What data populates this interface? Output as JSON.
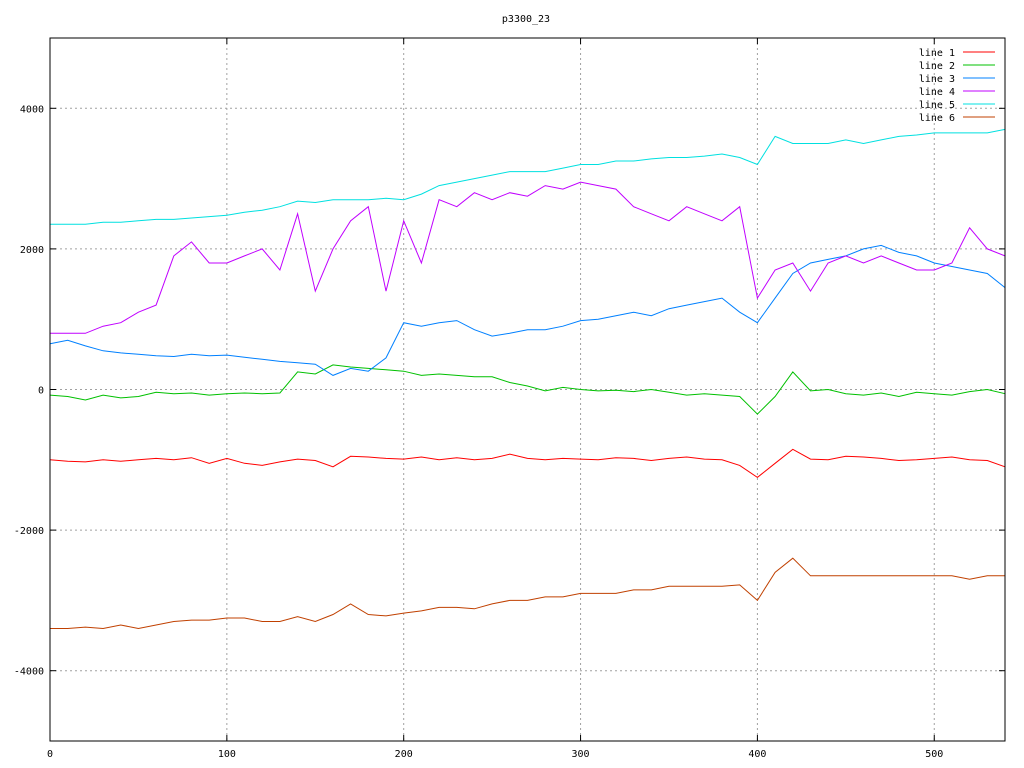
{
  "chart_data": {
    "type": "line",
    "title": "p3300_23",
    "xlabel": "",
    "ylabel": "",
    "xlim": [
      0,
      540
    ],
    "ylim": [
      -5000,
      5000
    ],
    "grid": true,
    "legend_position": "top-right",
    "x_ticks": [
      0,
      100,
      200,
      300,
      400,
      500
    ],
    "y_ticks": [
      -4000,
      -2000,
      0,
      2000,
      4000
    ],
    "x_tick_labels": [
      "0",
      "100",
      "200",
      "300",
      "400",
      "500"
    ],
    "y_tick_labels": [
      "-4000",
      "-2000",
      "0",
      "2000",
      "4000"
    ],
    "x": [
      0,
      10,
      20,
      30,
      40,
      50,
      60,
      70,
      80,
      90,
      100,
      110,
      120,
      130,
      140,
      150,
      160,
      170,
      180,
      190,
      200,
      210,
      220,
      230,
      240,
      250,
      260,
      270,
      280,
      290,
      300,
      310,
      320,
      330,
      340,
      350,
      360,
      370,
      380,
      390,
      400,
      410,
      420,
      430,
      440,
      450,
      460,
      470,
      480,
      490,
      500,
      510,
      520,
      530,
      540
    ],
    "series": [
      {
        "name": "line 1",
        "color": "#ff0000",
        "values": [
          -1000,
          -1020,
          -1030,
          -1000,
          -1020,
          -1000,
          -980,
          -1000,
          -970,
          -1050,
          -980,
          -1050,
          -1080,
          -1030,
          -990,
          -1010,
          -1100,
          -950,
          -960,
          -980,
          -990,
          -960,
          -1000,
          -970,
          -1000,
          -980,
          -920,
          -980,
          -1000,
          -980,
          -990,
          -1000,
          -970,
          -980,
          -1010,
          -980,
          -960,
          -990,
          -1000,
          -1080,
          -1250,
          -1050,
          -850,
          -990,
          -1000,
          -950,
          -960,
          -980,
          -1010,
          -1000,
          -980,
          -960,
          -1000,
          -1010,
          -1100
        ]
      },
      {
        "name": "line 2",
        "color": "#00c000",
        "values": [
          -80,
          -100,
          -150,
          -80,
          -120,
          -100,
          -40,
          -60,
          -50,
          -80,
          -60,
          -50,
          -60,
          -50,
          250,
          220,
          350,
          320,
          300,
          280,
          260,
          200,
          220,
          200,
          180,
          180,
          100,
          50,
          -20,
          30,
          0,
          -20,
          -10,
          -30,
          0,
          -40,
          -80,
          -60,
          -80,
          -100,
          -350,
          -100,
          250,
          -20,
          0,
          -60,
          -80,
          -50,
          -100,
          -40,
          -60,
          -80,
          -30,
          0,
          -60
        ]
      },
      {
        "name": "line 3",
        "color": "#0080ff",
        "values": [
          650,
          700,
          620,
          550,
          520,
          500,
          480,
          470,
          500,
          480,
          490,
          460,
          430,
          400,
          380,
          360,
          200,
          300,
          260,
          450,
          950,
          900,
          950,
          980,
          850,
          760,
          800,
          850,
          850,
          900,
          980,
          1000,
          1050,
          1100,
          1050,
          1150,
          1200,
          1250,
          1300,
          1100,
          950,
          1300,
          1650,
          1800,
          1850,
          1900,
          2000,
          2050,
          1950,
          1900,
          1800,
          1750,
          1700,
          1650,
          1450
        ]
      },
      {
        "name": "line 4",
        "color": "#c000ff",
        "values": [
          800,
          800,
          800,
          900,
          950,
          1100,
          1200,
          1900,
          2100,
          1800,
          1800,
          1900,
          2000,
          1700,
          2500,
          1400,
          2000,
          2400,
          2600,
          1400,
          2400,
          1800,
          2700,
          2600,
          2800,
          2700,
          2800,
          2750,
          2900,
          2850,
          2950,
          2900,
          2850,
          2600,
          2500,
          2400,
          2600,
          2500,
          2400,
          2600,
          1300,
          1700,
          1800,
          1400,
          1800,
          1900,
          1800,
          1900,
          1800,
          1700,
          1700,
          1800,
          2300,
          2000,
          1900
        ]
      },
      {
        "name": "line 5",
        "color": "#00e0e0",
        "values": [
          2350,
          2350,
          2350,
          2380,
          2380,
          2400,
          2420,
          2420,
          2440,
          2460,
          2480,
          2520,
          2550,
          2600,
          2680,
          2660,
          2700,
          2700,
          2700,
          2720,
          2700,
          2780,
          2900,
          2950,
          3000,
          3050,
          3100,
          3100,
          3100,
          3150,
          3200,
          3200,
          3250,
          3250,
          3280,
          3300,
          3300,
          3320,
          3350,
          3300,
          3200,
          3600,
          3500,
          3500,
          3500,
          3550,
          3500,
          3550,
          3600,
          3620,
          3650,
          3650,
          3650,
          3650,
          3700
        ]
      },
      {
        "name": "line 6",
        "color": "#c04000",
        "values": [
          -3400,
          -3400,
          -3380,
          -3400,
          -3350,
          -3400,
          -3350,
          -3300,
          -3280,
          -3280,
          -3250,
          -3250,
          -3300,
          -3300,
          -3230,
          -3300,
          -3200,
          -3050,
          -3200,
          -3220,
          -3180,
          -3150,
          -3100,
          -3100,
          -3120,
          -3050,
          -3000,
          -3000,
          -2950,
          -2950,
          -2900,
          -2900,
          -2900,
          -2850,
          -2850,
          -2800,
          -2800,
          -2800,
          -2800,
          -2780,
          -3000,
          -2600,
          -2400,
          -2650,
          -2650,
          -2650,
          -2650,
          -2650,
          -2650,
          -2650,
          -2650,
          -2650,
          -2700,
          -2650,
          -2650
        ]
      }
    ]
  }
}
